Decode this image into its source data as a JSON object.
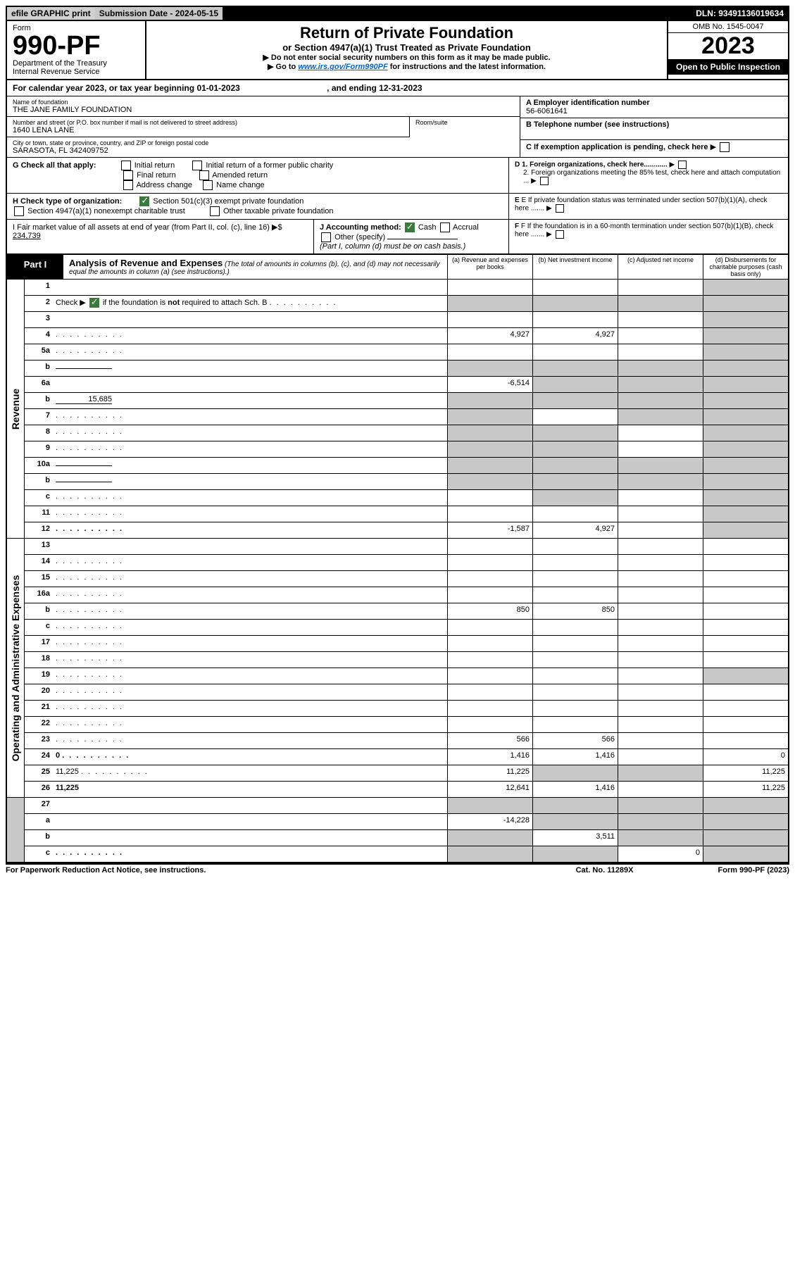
{
  "topbar": {
    "efile": "efile GRAPHIC print",
    "subdate_label": "Submission Date - 2024-05-15",
    "dln": "DLN: 93491136019634"
  },
  "header": {
    "form_label": "Form",
    "form_no": "990-PF",
    "dept": "Department of the Treasury",
    "irs": "Internal Revenue Service",
    "title": "Return of Private Foundation",
    "subtitle": "or Section 4947(a)(1) Trust Treated as Private Foundation",
    "note1": "▶ Do not enter social security numbers on this form as it may be made public.",
    "note2_pre": "▶ Go to ",
    "note2_link": "www.irs.gov/Form990PF",
    "note2_post": " for instructions and the latest information.",
    "omb": "OMB No. 1545-0047",
    "year": "2023",
    "open": "Open to Public Inspection"
  },
  "calyear": {
    "text": "For calendar year 2023, or tax year beginning 01-01-2023",
    "ending": ", and ending 12-31-2023"
  },
  "addr": {
    "name_lbl": "Name of foundation",
    "name": "THE JANE FAMILY FOUNDATION",
    "street_lbl": "Number and street (or P.O. box number if mail is not delivered to street address)",
    "street": "1640 LENA LANE",
    "room_lbl": "Room/suite",
    "city_lbl": "City or town, state or province, country, and ZIP or foreign postal code",
    "city": "SARASOTA, FL  342409752",
    "a_lbl": "A Employer identification number",
    "a_val": "56-6061641",
    "b_lbl": "B Telephone number (see instructions)",
    "c_lbl": "C If exemption application is pending, check here"
  },
  "g": {
    "label": "G Check all that apply:",
    "initial": "Initial return",
    "initial_former": "Initial return of a former public charity",
    "final": "Final return",
    "amended": "Amended return",
    "address": "Address change",
    "name": "Name change"
  },
  "d": {
    "d1": "D 1. Foreign organizations, check here............",
    "d2": "2. Foreign organizations meeting the 85% test, check here and attach computation ..."
  },
  "h": {
    "label": "H Check type of organization:",
    "opt1": "Section 501(c)(3) exempt private foundation",
    "opt2": "Section 4947(a)(1) nonexempt charitable trust",
    "opt3": "Other taxable private foundation"
  },
  "e": {
    "text": "E If private foundation status was terminated under section 507(b)(1)(A), check here ......."
  },
  "i": {
    "label": "I Fair market value of all assets at end of year (from Part II, col. (c), line 16) ▶$ ",
    "value": "234,739"
  },
  "j": {
    "label": "J Accounting method:",
    "cash": "Cash",
    "accrual": "Accrual",
    "other": "Other (specify)",
    "note": "(Part I, column (d) must be on cash basis.)"
  },
  "f": {
    "text": "F If the foundation is in a 60-month termination under section 507(b)(1)(B), check here ......."
  },
  "part1": {
    "label": "Part I",
    "title": "Analysis of Revenue and Expenses",
    "note": " (The total of amounts in columns (b), (c), and (d) may not necessarily equal the amounts in column (a) (see instructions).)",
    "col_a": "(a) Revenue and expenses per books",
    "col_b": "(b) Net investment income",
    "col_c": "(c) Adjusted net income",
    "col_d": "(d) Disbursements for charitable purposes (cash basis only)"
  },
  "sides": {
    "revenue": "Revenue",
    "expenses": "Operating and Administrative Expenses"
  },
  "rows": [
    {
      "n": "1",
      "d": "",
      "a": "",
      "b": "",
      "c": "",
      "shade": [
        "d"
      ]
    },
    {
      "n": "2",
      "d": "",
      "a": "",
      "b": "",
      "c": "",
      "shade": [
        "a",
        "b",
        "c",
        "d"
      ],
      "ck": true,
      "dots": true
    },
    {
      "n": "3",
      "d": "",
      "a": "",
      "b": "",
      "c": "",
      "shade": [
        "d"
      ]
    },
    {
      "n": "4",
      "d": "",
      "a": "4,927",
      "b": "4,927",
      "c": "",
      "shade": [
        "d"
      ],
      "dots": true
    },
    {
      "n": "5a",
      "d": "",
      "a": "",
      "b": "",
      "c": "",
      "shade": [
        "d"
      ],
      "dots": true
    },
    {
      "n": "b",
      "d": "",
      "a": "",
      "b": "",
      "c": "",
      "shade": [
        "a",
        "b",
        "c",
        "d"
      ],
      "fill": true
    },
    {
      "n": "6a",
      "d": "",
      "a": "-6,514",
      "b": "",
      "c": "",
      "shade": [
        "b",
        "c",
        "d"
      ]
    },
    {
      "n": "b",
      "d": "",
      "a": "",
      "b": "",
      "c": "",
      "shade": [
        "a",
        "b",
        "c",
        "d"
      ],
      "fill": true,
      "fillval": "15,685"
    },
    {
      "n": "7",
      "d": "",
      "a": "",
      "b": "",
      "c": "",
      "shade": [
        "a",
        "c",
        "d"
      ],
      "dots": true
    },
    {
      "n": "8",
      "d": "",
      "a": "",
      "b": "",
      "c": "",
      "shade": [
        "a",
        "b",
        "d"
      ],
      "dots": true
    },
    {
      "n": "9",
      "d": "",
      "a": "",
      "b": "",
      "c": "",
      "shade": [
        "a",
        "b",
        "d"
      ],
      "dots": true
    },
    {
      "n": "10a",
      "d": "",
      "a": "",
      "b": "",
      "c": "",
      "shade": [
        "a",
        "b",
        "c",
        "d"
      ],
      "fill": true
    },
    {
      "n": "b",
      "d": "",
      "a": "",
      "b": "",
      "c": "",
      "shade": [
        "a",
        "b",
        "c",
        "d"
      ],
      "fill": true,
      "dots": true
    },
    {
      "n": "c",
      "d": "",
      "a": "",
      "b": "",
      "c": "",
      "shade": [
        "b",
        "d"
      ],
      "dots": true
    },
    {
      "n": "11",
      "d": "",
      "a": "",
      "b": "",
      "c": "",
      "shade": [
        "d"
      ],
      "dots": true
    },
    {
      "n": "12",
      "d": "",
      "a": "-1,587",
      "b": "4,927",
      "c": "",
      "shade": [
        "d"
      ],
      "bold": true,
      "dots": true
    }
  ],
  "exp_rows": [
    {
      "n": "13",
      "d": "",
      "a": "",
      "b": "",
      "c": ""
    },
    {
      "n": "14",
      "d": "",
      "a": "",
      "b": "",
      "c": "",
      "dots": true
    },
    {
      "n": "15",
      "d": "",
      "a": "",
      "b": "",
      "c": "",
      "dots": true
    },
    {
      "n": "16a",
      "d": "",
      "a": "",
      "b": "",
      "c": "",
      "dots": true
    },
    {
      "n": "b",
      "d": "",
      "a": "850",
      "b": "850",
      "c": "",
      "dots": true
    },
    {
      "n": "c",
      "d": "",
      "a": "",
      "b": "",
      "c": "",
      "dots": true
    },
    {
      "n": "17",
      "d": "",
      "a": "",
      "b": "",
      "c": "",
      "dots": true
    },
    {
      "n": "18",
      "d": "",
      "a": "",
      "b": "",
      "c": "",
      "dots": true
    },
    {
      "n": "19",
      "d": "",
      "a": "",
      "b": "",
      "c": "",
      "shade": [
        "d"
      ],
      "dots": true
    },
    {
      "n": "20",
      "d": "",
      "a": "",
      "b": "",
      "c": "",
      "dots": true
    },
    {
      "n": "21",
      "d": "",
      "a": "",
      "b": "",
      "c": "",
      "dots": true
    },
    {
      "n": "22",
      "d": "",
      "a": "",
      "b": "",
      "c": "",
      "dots": true
    },
    {
      "n": "23",
      "d": "",
      "a": "566",
      "b": "566",
      "c": "",
      "dots": true
    },
    {
      "n": "24",
      "d": "0",
      "a": "1,416",
      "b": "1,416",
      "c": "",
      "bold": true,
      "dots": true
    },
    {
      "n": "25",
      "d": "11,225",
      "a": "11,225",
      "b": "",
      "c": "",
      "shade": [
        "b",
        "c"
      ],
      "dots": true
    },
    {
      "n": "26",
      "d": "11,225",
      "a": "12,641",
      "b": "1,416",
      "c": "",
      "bold": true
    }
  ],
  "net_rows": [
    {
      "n": "27",
      "d": "",
      "a": "",
      "b": "",
      "c": "",
      "shade": [
        "a",
        "b",
        "c",
        "d"
      ]
    },
    {
      "n": "a",
      "d": "",
      "a": "-14,228",
      "b": "",
      "c": "",
      "shade": [
        "b",
        "c",
        "d"
      ],
      "bold": true
    },
    {
      "n": "b",
      "d": "",
      "a": "",
      "b": "3,511",
      "c": "",
      "shade": [
        "a",
        "c",
        "d"
      ],
      "bold": true
    },
    {
      "n": "c",
      "d": "",
      "a": "",
      "b": "",
      "c": "0",
      "shade": [
        "a",
        "b",
        "d"
      ],
      "bold": true,
      "dots": true
    }
  ],
  "footer": {
    "left": "For Paperwork Reduction Act Notice, see instructions.",
    "center": "Cat. No. 11289X",
    "right": "Form 990-PF (2023)"
  }
}
